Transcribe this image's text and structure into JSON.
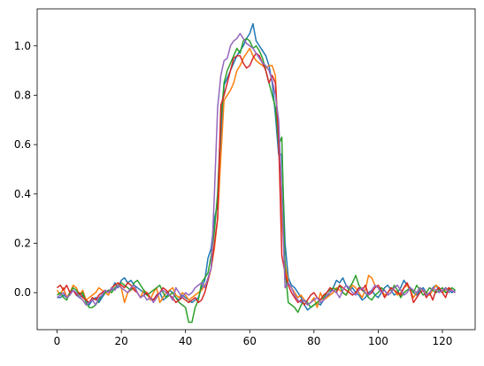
{
  "chart_data": {
    "type": "line",
    "x": [
      0,
      1,
      2,
      3,
      4,
      5,
      6,
      7,
      8,
      9,
      10,
      11,
      12,
      13,
      14,
      15,
      16,
      17,
      18,
      19,
      20,
      21,
      22,
      23,
      24,
      25,
      26,
      27,
      28,
      29,
      30,
      31,
      32,
      33,
      34,
      35,
      36,
      37,
      38,
      39,
      40,
      41,
      42,
      43,
      44,
      45,
      46,
      47,
      48,
      49,
      50,
      51,
      52,
      53,
      54,
      55,
      56,
      57,
      58,
      59,
      60,
      61,
      62,
      63,
      64,
      65,
      66,
      67,
      68,
      69,
      70,
      71,
      72,
      73,
      74,
      75,
      76,
      77,
      78,
      79,
      80,
      81,
      82,
      83,
      84,
      85,
      86,
      87,
      88,
      89,
      90,
      91,
      92,
      93,
      94,
      95,
      96,
      97,
      98,
      99,
      100,
      101,
      102,
      103,
      104,
      105,
      106,
      107,
      108,
      109,
      110,
      111,
      112,
      113,
      114,
      115,
      116,
      117,
      118,
      119,
      120,
      121,
      122,
      123,
      124
    ],
    "series": [
      {
        "color": "#1f77b4",
        "values": [
          -0.02,
          -0.02,
          -0.01,
          -0.02,
          0.0,
          0.01,
          -0.01,
          -0.02,
          -0.01,
          -0.03,
          -0.05,
          -0.03,
          -0.02,
          -0.04,
          -0.02,
          0.0,
          0.01,
          0.01,
          0.04,
          0.02,
          0.05,
          0.06,
          0.04,
          0.05,
          0.03,
          0.02,
          0.01,
          0.0,
          -0.01,
          -0.02,
          -0.03,
          -0.01,
          0.0,
          -0.03,
          -0.02,
          0.01,
          0.0,
          -0.02,
          -0.03,
          -0.01,
          -0.02,
          -0.03,
          -0.04,
          -0.03,
          -0.02,
          0.02,
          0.05,
          0.14,
          0.18,
          0.3,
          0.36,
          0.62,
          0.84,
          0.87,
          0.9,
          0.93,
          0.96,
          0.98,
          1.0,
          1.03,
          1.05,
          1.09,
          1.02,
          1.0,
          0.98,
          0.96,
          0.92,
          0.85,
          0.72,
          0.56,
          0.56,
          0.2,
          0.06,
          0.03,
          0.02,
          0.0,
          -0.02,
          -0.05,
          -0.07,
          -0.06,
          -0.05,
          -0.04,
          -0.05,
          -0.03,
          -0.02,
          0.0,
          0.02,
          0.05,
          0.04,
          0.06,
          0.03,
          0.01,
          0.02,
          0.0,
          -0.01,
          -0.03,
          -0.02,
          0.0,
          0.01,
          -0.01,
          -0.02,
          0.0,
          0.02,
          0.03,
          0.01,
          -0.01,
          0.0,
          0.02,
          0.05,
          0.03,
          0.02,
          0.0,
          -0.01,
          0.01,
          0.02,
          0.0,
          -0.01,
          0.02,
          0.03,
          0.01,
          0.0,
          0.02,
          0.01,
          0.0,
          0.01
        ]
      },
      {
        "color": "#ff7f0e",
        "values": [
          0.01,
          -0.01,
          0.02,
          -0.02,
          0.0,
          0.03,
          0.02,
          -0.01,
          0.01,
          -0.03,
          -0.02,
          -0.01,
          0.0,
          0.02,
          0.01,
          0.0,
          -0.01,
          0.02,
          0.03,
          0.04,
          0.02,
          -0.04,
          0.0,
          0.01,
          0.02,
          0.0,
          -0.02,
          0.01,
          0.0,
          -0.03,
          0.0,
          0.02,
          -0.04,
          -0.02,
          0.0,
          0.01,
          0.02,
          -0.01,
          -0.02,
          0.0,
          -0.01,
          -0.03,
          -0.02,
          -0.01,
          0.0,
          0.01,
          0.03,
          0.05,
          0.1,
          0.18,
          0.3,
          0.55,
          0.78,
          0.8,
          0.82,
          0.85,
          0.9,
          0.92,
          0.95,
          0.97,
          0.99,
          0.96,
          0.94,
          0.93,
          0.92,
          0.91,
          0.92,
          0.92,
          0.88,
          0.6,
          0.3,
          0.12,
          0.04,
          0.02,
          0.0,
          -0.02,
          -0.01,
          -0.03,
          -0.05,
          -0.04,
          -0.02,
          -0.06,
          0.0,
          -0.03,
          -0.02,
          -0.01,
          0.0,
          0.02,
          0.01,
          0.0,
          -0.01,
          0.01,
          0.03,
          0.02,
          0.0,
          -0.02,
          0.01,
          0.07,
          0.06,
          0.03,
          0.02,
          0.01,
          -0.01,
          0.0,
          0.02,
          0.01,
          -0.01,
          0.0,
          0.02,
          0.03,
          0.01,
          -0.02,
          0.0,
          0.02,
          0.01,
          0.0,
          -0.01,
          0.01,
          0.03,
          0.02,
          0.0,
          0.01,
          0.02,
          0.01,
          0.0
        ]
      },
      {
        "color": "#2ca02c",
        "values": [
          -0.01,
          0.0,
          -0.02,
          -0.03,
          0.0,
          0.02,
          0.01,
          -0.01,
          0.0,
          -0.04,
          -0.06,
          -0.06,
          -0.05,
          -0.03,
          -0.01,
          0.0,
          0.01,
          0.0,
          0.02,
          0.03,
          0.04,
          0.03,
          0.02,
          0.01,
          0.04,
          0.05,
          0.03,
          0.01,
          -0.01,
          0.0,
          0.01,
          0.02,
          0.03,
          0.0,
          -0.02,
          -0.01,
          0.0,
          -0.02,
          -0.04,
          -0.05,
          -0.06,
          -0.12,
          -0.12,
          -0.06,
          -0.03,
          0.04,
          0.06,
          0.08,
          0.15,
          0.25,
          0.4,
          0.7,
          0.85,
          0.9,
          0.93,
          0.96,
          0.99,
          0.97,
          1.02,
          1.03,
          1.02,
          0.99,
          1.0,
          0.98,
          0.95,
          0.9,
          0.85,
          0.8,
          0.75,
          0.6,
          0.63,
          0.1,
          -0.04,
          -0.05,
          -0.06,
          -0.08,
          -0.05,
          -0.03,
          -0.04,
          -0.06,
          -0.05,
          -0.04,
          -0.03,
          -0.02,
          0.0,
          0.01,
          0.02,
          0.01,
          0.03,
          0.0,
          -0.01,
          0.02,
          0.04,
          0.07,
          0.03,
          0.01,
          0.0,
          -0.02,
          -0.03,
          -0.01,
          0.0,
          0.02,
          0.01,
          -0.01,
          0.0,
          0.03,
          0.01,
          -0.02,
          0.0,
          0.01,
          0.02,
          0.0,
          0.03,
          0.01,
          -0.01,
          0.0,
          0.02,
          0.01,
          0.0,
          0.01,
          0.02,
          0.0,
          0.01,
          0.02,
          0.01
        ]
      },
      {
        "color": "#d62728",
        "values": [
          0.02,
          0.03,
          0.01,
          0.03,
          0.0,
          0.01,
          -0.01,
          0.0,
          -0.02,
          -0.03,
          -0.04,
          -0.02,
          -0.03,
          -0.01,
          0.0,
          0.01,
          0.0,
          0.02,
          0.03,
          0.04,
          0.03,
          0.02,
          0.04,
          0.03,
          0.01,
          0.0,
          -0.02,
          -0.01,
          0.0,
          -0.02,
          -0.03,
          -0.01,
          0.0,
          0.02,
          0.01,
          -0.01,
          -0.02,
          -0.04,
          -0.03,
          -0.02,
          -0.03,
          -0.04,
          -0.03,
          -0.02,
          -0.04,
          -0.03,
          0.0,
          0.05,
          0.1,
          0.2,
          0.3,
          0.76,
          0.8,
          0.85,
          0.9,
          0.95,
          0.96,
          0.96,
          0.93,
          0.91,
          0.92,
          0.95,
          0.97,
          0.96,
          0.93,
          0.9,
          0.85,
          0.88,
          0.85,
          0.62,
          0.15,
          0.08,
          0.03,
          0.0,
          -0.02,
          -0.04,
          -0.03,
          -0.05,
          -0.03,
          -0.01,
          0.0,
          -0.02,
          -0.03,
          -0.01,
          0.0,
          0.02,
          0.01,
          0.0,
          0.03,
          0.02,
          0.01,
          0.0,
          -0.01,
          0.0,
          0.02,
          0.01,
          0.03,
          -0.01,
          0.0,
          0.02,
          0.03,
          0.01,
          -0.02,
          0.0,
          0.02,
          0.01,
          0.0,
          -0.01,
          0.02,
          0.04,
          0.01,
          -0.04,
          -0.02,
          0.0,
          0.01,
          -0.02,
          0.0,
          -0.03,
          0.01,
          0.02,
          0.0,
          -0.02,
          0.02,
          0.01,
          0.0
        ]
      },
      {
        "color": "#9467bd",
        "values": [
          -0.02,
          -0.01,
          0.0,
          -0.02,
          -0.01,
          0.01,
          0.0,
          -0.02,
          -0.03,
          -0.05,
          -0.04,
          -0.03,
          -0.05,
          -0.02,
          -0.01,
          0.01,
          0.0,
          0.02,
          0.01,
          0.03,
          0.02,
          0.01,
          0.0,
          0.02,
          0.03,
          0.0,
          -0.02,
          -0.01,
          -0.03,
          -0.02,
          -0.04,
          -0.02,
          0.0,
          0.01,
          0.0,
          -0.01,
          -0.03,
          0.02,
          0.0,
          -0.02,
          0.0,
          -0.01,
          0.0,
          0.02,
          0.03,
          0.04,
          0.02,
          0.06,
          0.1,
          0.4,
          0.75,
          0.88,
          0.94,
          0.95,
          1.0,
          1.02,
          1.03,
          1.05,
          1.03,
          1.01,
          1.0,
          0.99,
          0.97,
          0.95,
          0.93,
          0.92,
          0.9,
          0.86,
          0.8,
          0.7,
          0.4,
          0.02,
          0.04,
          0.02,
          -0.01,
          -0.03,
          -0.04,
          -0.03,
          -0.05,
          -0.04,
          -0.03,
          -0.02,
          -0.04,
          -0.03,
          -0.01,
          0.0,
          0.01,
          0.0,
          -0.02,
          0.01,
          0.03,
          0.02,
          0.0,
          -0.01,
          0.01,
          0.02,
          0.0,
          -0.01,
          0.01,
          0.03,
          0.02,
          0.0,
          0.01,
          -0.01,
          0.0,
          0.02,
          0.03,
          0.01,
          -0.01,
          0.0,
          0.02,
          0.01,
          0.0,
          0.02,
          0.01,
          -0.01,
          0.0,
          0.02,
          0.01,
          0.0,
          0.01,
          0.02,
          0.0,
          0.01,
          0.0
        ]
      }
    ],
    "xlim": [
      -6.2,
      130.2
    ],
    "xticks": [
      0,
      20,
      40,
      60,
      80,
      100,
      120
    ],
    "ylim": [
      -0.15,
      1.15
    ],
    "yticks": [
      {
        "value": 0,
        "label": "0.0"
      },
      0.2,
      0.4,
      0.6,
      0.8,
      {
        "value": 1,
        "label": "1.0"
      }
    ]
  }
}
